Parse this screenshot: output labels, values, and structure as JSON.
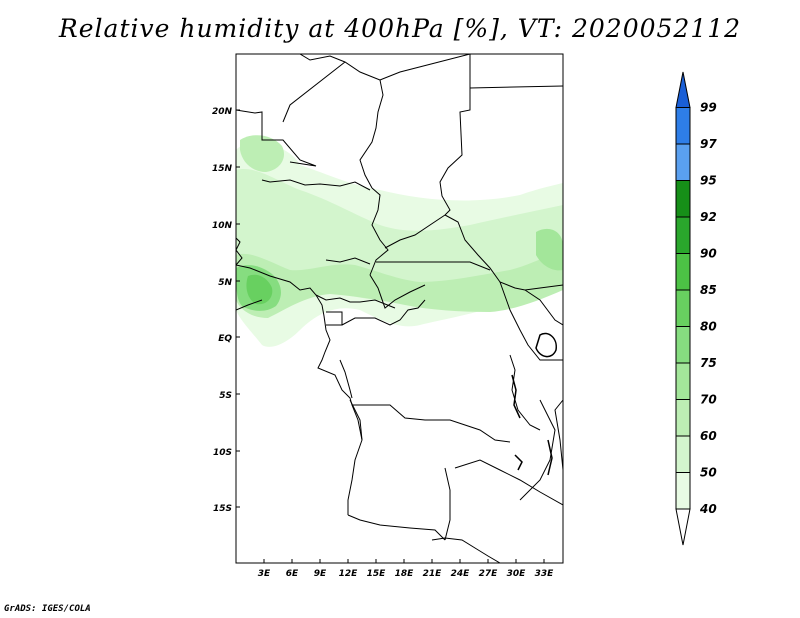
{
  "title": "Relative humidity at 400hPa [%], VT: 2020052112",
  "credit": "GrADS: IGES/COLA",
  "colors": {
    "frame": "#000000",
    "c40": "#e8fbe4",
    "c50": "#d3f5cd",
    "c60": "#bdeeb4",
    "c70": "#a3e69a",
    "c75": "#86dd80",
    "c80": "#68d060",
    "c85": "#4cc245",
    "c90": "#2aa72c",
    "c92": "#168f18",
    "c95": "#5aa0f0",
    "c97": "#2e7ee8",
    "c99": "#1a5fd6"
  },
  "chart_data": {
    "type": "contour-map",
    "variable": "Relative humidity",
    "level": "400hPa",
    "units": "%",
    "valid_time": "2020052112",
    "lon_range": [
      0,
      35
    ],
    "lat_range": [
      -20,
      25
    ],
    "lon_ticks": [
      "3E",
      "6E",
      "9E",
      "12E",
      "15E",
      "18E",
      "21E",
      "24E",
      "27E",
      "30E",
      "33E"
    ],
    "lat_ticks": [
      "20N",
      "15N",
      "10N",
      "5N",
      "EQ",
      "5S",
      "10S",
      "15S"
    ],
    "colorbar": {
      "levels": [
        "40",
        "50",
        "60",
        "70",
        "75",
        "80",
        "85",
        "90",
        "92",
        "95",
        "97",
        "99"
      ],
      "bins": [
        {
          "range": "<40",
          "color": "#ffffff"
        },
        {
          "range": "40-50",
          "color": "#e8fbe4"
        },
        {
          "range": "50-60",
          "color": "#d3f5cd"
        },
        {
          "range": "60-70",
          "color": "#bdeeb4"
        },
        {
          "range": "70-75",
          "color": "#a3e69a"
        },
        {
          "range": "75-80",
          "color": "#86dd80"
        },
        {
          "range": "80-85",
          "color": "#68d060"
        },
        {
          "range": "85-90",
          "color": "#4cc245"
        },
        {
          "range": "90-92",
          "color": "#2aa72c"
        },
        {
          "range": "92-95",
          "color": "#168f18"
        },
        {
          "range": "95-97",
          "color": "#5aa0f0"
        },
        {
          "range": "97-99",
          "color": "#2e7ee8"
        },
        {
          "range": ">99",
          "color": "#1a5fd6"
        }
      ]
    }
  }
}
